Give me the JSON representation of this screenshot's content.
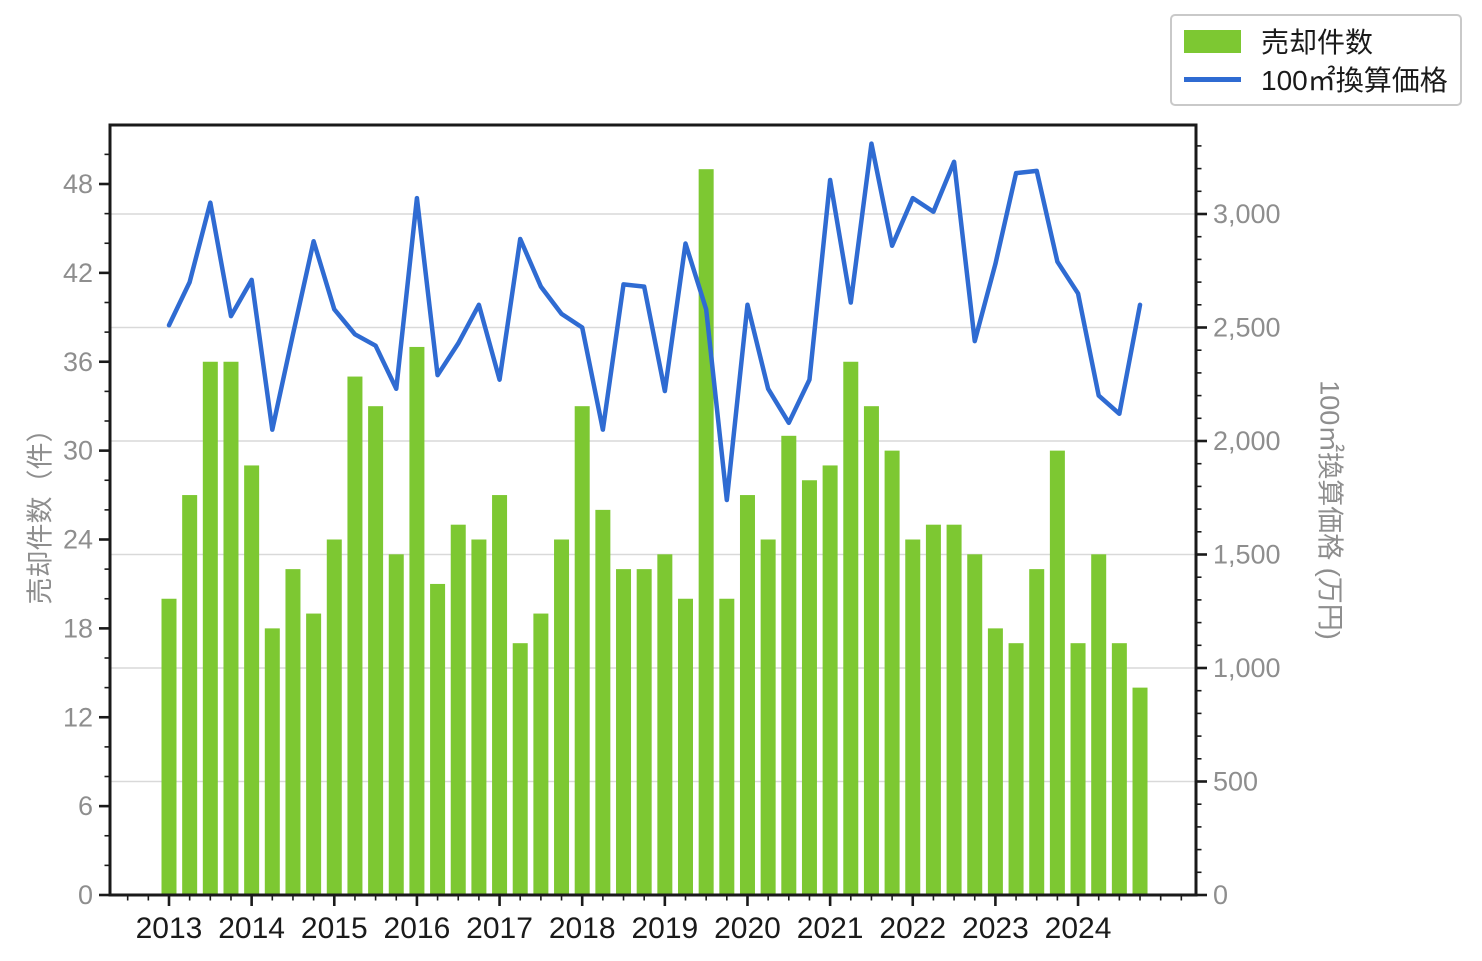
{
  "chart_data": {
    "type": "combo-bar-line",
    "categories": [
      "2013Q1",
      "2013Q2",
      "2013Q3",
      "2013Q4",
      "2014Q1",
      "2014Q2",
      "2014Q3",
      "2014Q4",
      "2015Q1",
      "2015Q2",
      "2015Q3",
      "2015Q4",
      "2016Q1",
      "2016Q2",
      "2016Q3",
      "2016Q4",
      "2017Q1",
      "2017Q2",
      "2017Q3",
      "2017Q4",
      "2018Q1",
      "2018Q2",
      "2018Q3",
      "2018Q4",
      "2019Q1",
      "2019Q2",
      "2019Q3",
      "2019Q4",
      "2020Q1",
      "2020Q2",
      "2020Q3",
      "2020Q4",
      "2021Q1",
      "2021Q2",
      "2021Q3",
      "2021Q4",
      "2022Q1",
      "2022Q2",
      "2022Q3",
      "2022Q4",
      "2023Q1",
      "2023Q2",
      "2023Q3",
      "2023Q4",
      "2024Q1",
      "2024Q2",
      "2024Q3",
      "2024Q4"
    ],
    "series": [
      {
        "name": "売却件数",
        "type": "bar",
        "axis": "left",
        "values": [
          20,
          27,
          36,
          36,
          29,
          18,
          22,
          19,
          24,
          35,
          33,
          23,
          37,
          21,
          25,
          24,
          27,
          17,
          19,
          24,
          33,
          26,
          22,
          22,
          23,
          20,
          49,
          20,
          27,
          24,
          31,
          28,
          29,
          36,
          33,
          30,
          24,
          25,
          25,
          23,
          18,
          17,
          22,
          30,
          17,
          23,
          17,
          14
        ]
      },
      {
        "name": "100㎡換算価格",
        "type": "line",
        "axis": "right",
        "values": [
          2510,
          2700,
          3050,
          2550,
          2710,
          2050,
          2470,
          2880,
          2580,
          2470,
          2420,
          2230,
          3070,
          2290,
          2430,
          2600,
          2270,
          2890,
          2680,
          2560,
          2500,
          2050,
          2690,
          2680,
          2220,
          2870,
          2580,
          1740,
          2600,
          2230,
          2080,
          2270,
          3150,
          2610,
          3310,
          2860,
          3070,
          3010,
          3230,
          2440,
          2780,
          3180,
          3190,
          2790,
          2650,
          2200,
          2120,
          2600
        ]
      }
    ],
    "left_axis": {
      "label": "売却件数（件）",
      "tick_values": [
        0,
        6,
        12,
        18,
        24,
        30,
        36,
        42,
        48
      ],
      "minor_step": 2,
      "range": [
        0,
        52
      ]
    },
    "right_axis": {
      "label": "100㎡換算価格 (万円)",
      "tick_values": [
        0,
        500,
        1000,
        1500,
        2000,
        2500,
        3000
      ],
      "tick_labels": [
        "0",
        "500",
        "1,000",
        "1,500",
        "2,000",
        "2,500",
        "3,000"
      ],
      "minor_step": 100,
      "range": [
        0,
        3392
      ]
    },
    "x_axis": {
      "year_labels": [
        "2013",
        "2014",
        "2015",
        "2016",
        "2017",
        "2018",
        "2019",
        "2020",
        "2021",
        "2022",
        "2023",
        "2024"
      ]
    },
    "legend": {
      "position": "top-right",
      "items": [
        {
          "label": "売却件数",
          "swatch": "bar"
        },
        {
          "label": "100㎡換算価格",
          "swatch": "line"
        }
      ]
    },
    "grid": "horizontal gridlines at right-axis 500 steps",
    "colors": {
      "bar": "#7dc832",
      "line": "#2f6bd2",
      "grid": "#d9d9d9",
      "spine": "#1a1a1a",
      "tick_label": "#8e8e8e",
      "year_label": "#1a1a1a",
      "legend_border": "#c9c9c9"
    }
  }
}
